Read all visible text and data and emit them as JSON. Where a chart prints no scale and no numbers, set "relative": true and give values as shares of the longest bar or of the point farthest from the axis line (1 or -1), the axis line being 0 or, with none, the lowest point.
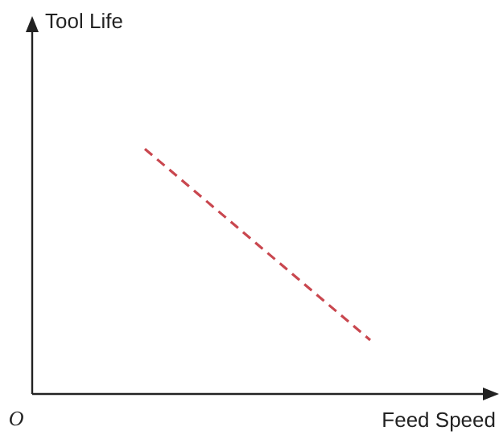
{
  "chart_data": {
    "type": "line",
    "xlabel": "Feed Speed",
    "annotations": [
      "Tool Life",
      "O"
    ],
    "categories": [
      null,
      null
    ],
    "relative": true,
    "series": [
      {
        "color": "#c9474f",
        "values": [
          1,
          0.22
        ]
      }
    ],
    "line_style": "dashed",
    "marker": "none",
    "legend": false,
    "grid": false
  }
}
